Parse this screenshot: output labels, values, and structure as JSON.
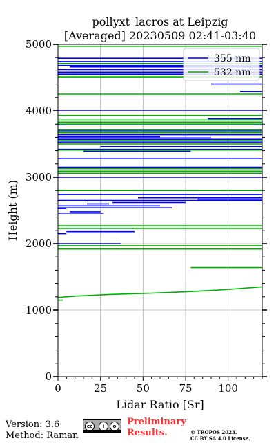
{
  "header": {
    "title_line1": "pollyxt_lacros at Leipzig",
    "title_line2": "[Averaged] 20230509 02:41-03:40"
  },
  "footer": {
    "version": "Version: 3.6",
    "method": "Method: Raman",
    "preliminary_line1": "Preliminary",
    "preliminary_line2": "Results.",
    "copyright_line1": "© TROPOS 2023.",
    "copyright_line2": "CC BY SA 4.0 License.",
    "license_icon": "cc-by-sa-badge-icon"
  },
  "colors": {
    "s355": "#0000ff",
    "s532": "#00b000",
    "grid": "#b0b0b0",
    "title_prelim": "#ff3030"
  },
  "chart_data": {
    "type": "line",
    "title": "pollyxt_lacros at Leipzig\n[Averaged] 20230509 02:41-03:40",
    "xlabel": "Lidar Ratio [Sr]",
    "ylabel": "Height (m)",
    "xlim": [
      0,
      120
    ],
    "ylim": [
      0,
      5000
    ],
    "xticks": [
      0,
      25,
      50,
      75,
      100
    ],
    "yticks": [
      0,
      1000,
      2000,
      3000,
      4000,
      5000
    ],
    "grid": true,
    "legend": {
      "position": "top-right",
      "entries": [
        "355 nm",
        "532 nm"
      ]
    },
    "series": [
      {
        "name": "355 nm",
        "color": "#0000ff",
        "segments": [
          {
            "h": 4790,
            "x": [
              0,
              120
            ]
          },
          {
            "h": 4740,
            "x": [
              0,
              120
            ]
          },
          {
            "h": 4680,
            "x": [
              0,
              120
            ]
          },
          {
            "h": 4660,
            "x": [
              7,
              120
            ]
          },
          {
            "h": 4620,
            "x": [
              0,
              120
            ]
          },
          {
            "h": 4580,
            "x": [
              0,
              120
            ]
          },
          {
            "h": 4550,
            "x": [
              0,
              120
            ]
          },
          {
            "h": 4400,
            "x": [
              90,
              120
            ]
          },
          {
            "h": 4290,
            "x": [
              107,
              120
            ]
          },
          {
            "h": 4000,
            "x": [
              0,
              120
            ]
          },
          {
            "h": 3880,
            "x": [
              88,
              120
            ]
          },
          {
            "h": 3790,
            "x": [
              0,
              120
            ]
          },
          {
            "h": 3700,
            "x": [
              0,
              120
            ]
          },
          {
            "h": 3640,
            "x": [
              0,
              120
            ]
          },
          {
            "h": 3610,
            "x": [
              0,
              60
            ]
          },
          {
            "h": 3590,
            "x": [
              0,
              90
            ]
          },
          {
            "h": 3570,
            "x": [
              0,
              120
            ]
          },
          {
            "h": 3530,
            "x": [
              0,
              120
            ]
          },
          {
            "h": 3460,
            "x": [
              25,
              120
            ]
          },
          {
            "h": 3420,
            "x": [
              0,
              120
            ]
          },
          {
            "h": 3390,
            "x": [
              15,
              78
            ]
          },
          {
            "h": 3280,
            "x": [
              0,
              120
            ]
          },
          {
            "h": 3150,
            "x": [
              0,
              120
            ]
          },
          {
            "h": 3000,
            "x": [
              0,
              120
            ]
          },
          {
            "h": 2740,
            "x": [
              0,
              120
            ]
          },
          {
            "h": 2690,
            "x": [
              47,
              120
            ]
          },
          {
            "h": 2670,
            "x": [
              82,
              120
            ]
          },
          {
            "h": 2650,
            "x": [
              0,
              120
            ]
          },
          {
            "h": 2620,
            "x": [
              32,
              75
            ]
          },
          {
            "h": 2600,
            "x": [
              17,
              30
            ]
          },
          {
            "h": 2570,
            "x": [
              0,
              60
            ]
          },
          {
            "h": 2540,
            "x": [
              0,
              67
            ]
          },
          {
            "h": 2530,
            "x": [
              0,
              5
            ]
          },
          {
            "h": 2480,
            "x": [
              7,
              25
            ]
          },
          {
            "h": 2460,
            "x": [
              0,
              27
            ]
          },
          {
            "h": 2180,
            "x": [
              5,
              45
            ]
          },
          {
            "h": 2150,
            "x": [
              0,
              5
            ]
          },
          {
            "h": 2000,
            "x": [
              0,
              37
            ]
          }
        ]
      },
      {
        "name": "532 nm",
        "color": "#00b000",
        "segments": [
          {
            "h": 4970,
            "x": [
              0,
              120
            ]
          },
          {
            "h": 4710,
            "x": [
              0,
              120
            ]
          },
          {
            "h": 4510,
            "x": [
              0,
              120
            ]
          },
          {
            "h": 4250,
            "x": [
              0,
              120
            ]
          },
          {
            "h": 3930,
            "x": [
              0,
              120
            ]
          },
          {
            "h": 3860,
            "x": [
              0,
              120
            ]
          },
          {
            "h": 3830,
            "x": [
              0,
              120
            ]
          },
          {
            "h": 3800,
            "x": [
              0,
              120
            ]
          },
          {
            "h": 3710,
            "x": [
              0,
              120
            ]
          },
          {
            "h": 3670,
            "x": [
              0,
              120
            ]
          },
          {
            "h": 3550,
            "x": [
              0,
              120
            ]
          },
          {
            "h": 3500,
            "x": [
              0,
              120
            ]
          },
          {
            "h": 3410,
            "x": [
              0,
              120
            ]
          },
          {
            "h": 3130,
            "x": [
              0,
              120
            ]
          },
          {
            "h": 3090,
            "x": [
              0,
              120
            ]
          },
          {
            "h": 3060,
            "x": [
              0,
              120
            ]
          },
          {
            "h": 2800,
            "x": [
              0,
              120
            ]
          },
          {
            "h": 2270,
            "x": [
              0,
              120
            ]
          },
          {
            "h": 2230,
            "x": [
              0,
              120
            ]
          },
          {
            "h": 1970,
            "x": [
              0,
              120
            ]
          },
          {
            "h": 1920,
            "x": [
              0,
              120
            ]
          },
          {
            "h": 1640,
            "x": [
              78,
              120
            ]
          },
          {
            "h": 1150,
            "x": [
              0,
              3
            ]
          }
        ],
        "profile": {
          "x": [
            0,
            10,
            20,
            30,
            40,
            50,
            60,
            70,
            80,
            90,
            100,
            110,
            120
          ],
          "y": [
            1190,
            1210,
            1222,
            1235,
            1243,
            1250,
            1260,
            1270,
            1282,
            1295,
            1310,
            1330,
            1350
          ]
        }
      }
    ]
  }
}
